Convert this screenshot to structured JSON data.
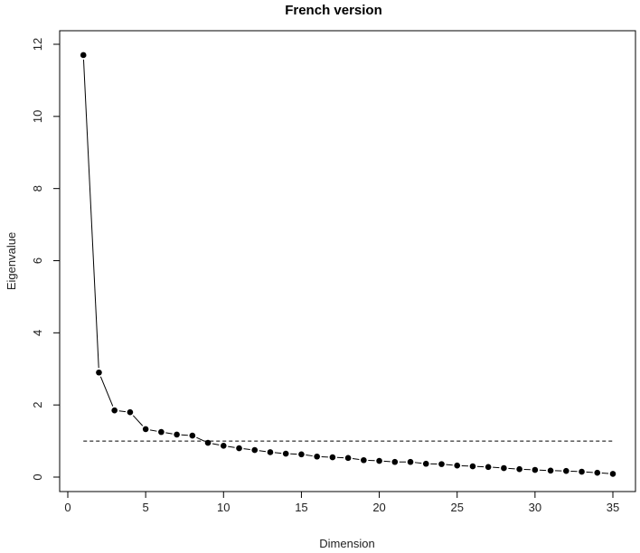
{
  "chart_data": {
    "type": "line",
    "title": "French version",
    "xlabel": "Dimension",
    "ylabel": "Eigenvalue",
    "xlim": [
      0,
      35
    ],
    "ylim": [
      0,
      12
    ],
    "x_ticks": [
      "0",
      "5",
      "10",
      "15",
      "20",
      "25",
      "30",
      "35"
    ],
    "y_ticks": [
      "0",
      "2",
      "4",
      "6",
      "8",
      "10",
      "12"
    ],
    "grid": false,
    "legend": "none",
    "reference_line": {
      "y": 1.0,
      "style": "dashed",
      "x_range": [
        1,
        35
      ]
    },
    "series": [
      {
        "x": [
          1,
          2,
          3,
          4,
          5,
          6,
          7,
          8,
          9,
          10,
          11,
          12,
          13,
          14,
          15,
          16,
          17,
          18,
          19,
          20,
          21,
          22,
          23,
          24,
          25,
          26,
          27,
          28,
          29,
          30,
          31,
          32,
          33,
          34,
          35
        ],
        "values": [
          11.7,
          2.9,
          1.85,
          1.8,
          1.33,
          1.25,
          1.18,
          1.15,
          0.95,
          0.87,
          0.8,
          0.75,
          0.69,
          0.65,
          0.63,
          0.57,
          0.55,
          0.53,
          0.47,
          0.45,
          0.42,
          0.42,
          0.37,
          0.36,
          0.32,
          0.3,
          0.28,
          0.25,
          0.22,
          0.2,
          0.18,
          0.17,
          0.15,
          0.12,
          0.09
        ]
      }
    ],
    "colors": {
      "points": "#000000",
      "line": "#000000",
      "axis": "#000000"
    }
  }
}
